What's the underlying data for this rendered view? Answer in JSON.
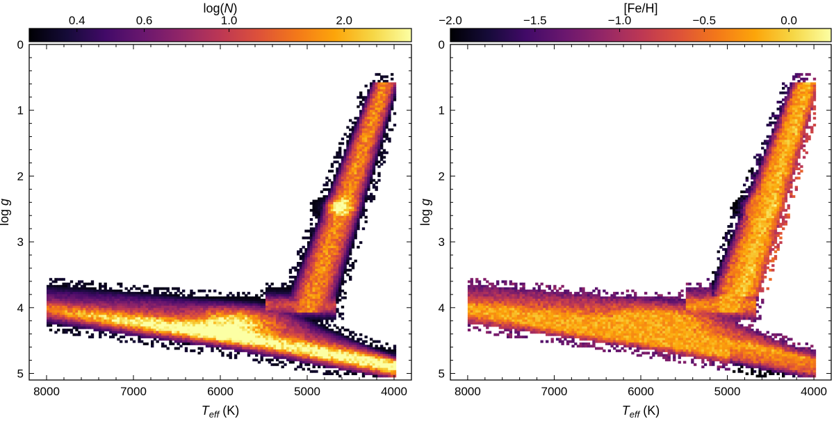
{
  "chart_data": [
    {
      "type": "heatmap",
      "panel": "left",
      "colorbar": {
        "label": "log(N)",
        "label_parts": [
          "log(",
          "N",
          ")"
        ],
        "tick_labels": [
          "0.4",
          "0.6",
          "1.0",
          "2.0"
        ],
        "tick_values": [
          0.4,
          0.6,
          1.0,
          2.0
        ],
        "range": [
          0.3,
          3.0
        ],
        "colormap": "inferno"
      },
      "xlabel": "T_eff (K)",
      "xlabel_parts": {
        "main": "T",
        "sub": "eff",
        "unit": " (K)"
      },
      "ylabel": "log g",
      "ylabel_parts": {
        "main": "log ",
        "italic": "g"
      },
      "x_ticks": [
        8000,
        7000,
        6000,
        5000,
        4000
      ],
      "x_tick_labels": [
        "8000",
        "7000",
        "6000",
        "5000",
        "4000"
      ],
      "xlim": [
        8200,
        3800
      ],
      "y_ticks": [
        0,
        1,
        2,
        3,
        4,
        5
      ],
      "y_tick_labels": [
        "0",
        "1",
        "2",
        "3",
        "4",
        "5"
      ],
      "ylim": [
        0,
        5.1
      ],
      "grid": false,
      "x_reversed": true,
      "y_reversed": true,
      "features": [
        {
          "name": "main sequence",
          "teff": [
            8000,
            4000
          ],
          "logg": [
            4.05,
            4.85
          ]
        },
        {
          "name": "turnoff region",
          "teff": [
            7800,
            5300
          ],
          "logg": [
            3.7,
            4.05
          ]
        },
        {
          "name": "red giant branch",
          "teff": [
            5000,
            4150
          ],
          "logg": [
            3.9,
            0.65
          ]
        },
        {
          "name": "red clump",
          "teff": [
            4800,
            4500
          ],
          "logg": [
            2.4,
            2.5
          ]
        }
      ]
    },
    {
      "type": "heatmap",
      "panel": "right",
      "colorbar": {
        "label": "[Fe/H]",
        "tick_labels": [
          "−2.0",
          "−1.5",
          "−1.0",
          "−0.5",
          "0.0"
        ],
        "tick_values": [
          -2.0,
          -1.5,
          -1.0,
          -0.5,
          0.0
        ],
        "range": [
          -2.0,
          0.25
        ],
        "colormap": "inferno"
      },
      "xlabel": "T_eff (K)",
      "xlabel_parts": {
        "main": "T",
        "sub": "eff",
        "unit": " (K)"
      },
      "ylabel": "log g",
      "ylabel_parts": {
        "main": "log ",
        "italic": "g"
      },
      "x_ticks": [
        8000,
        7000,
        6000,
        5000,
        4000
      ],
      "x_tick_labels": [
        "8000",
        "7000",
        "6000",
        "5000",
        "4000"
      ],
      "xlim": [
        8200,
        3800
      ],
      "y_ticks": [
        0,
        1,
        2,
        3,
        4,
        5
      ],
      "y_tick_labels": [
        "0",
        "1",
        "2",
        "3",
        "4",
        "5"
      ],
      "ylim": [
        0,
        5.1
      ],
      "grid": false,
      "x_reversed": true,
      "y_reversed": true
    }
  ]
}
